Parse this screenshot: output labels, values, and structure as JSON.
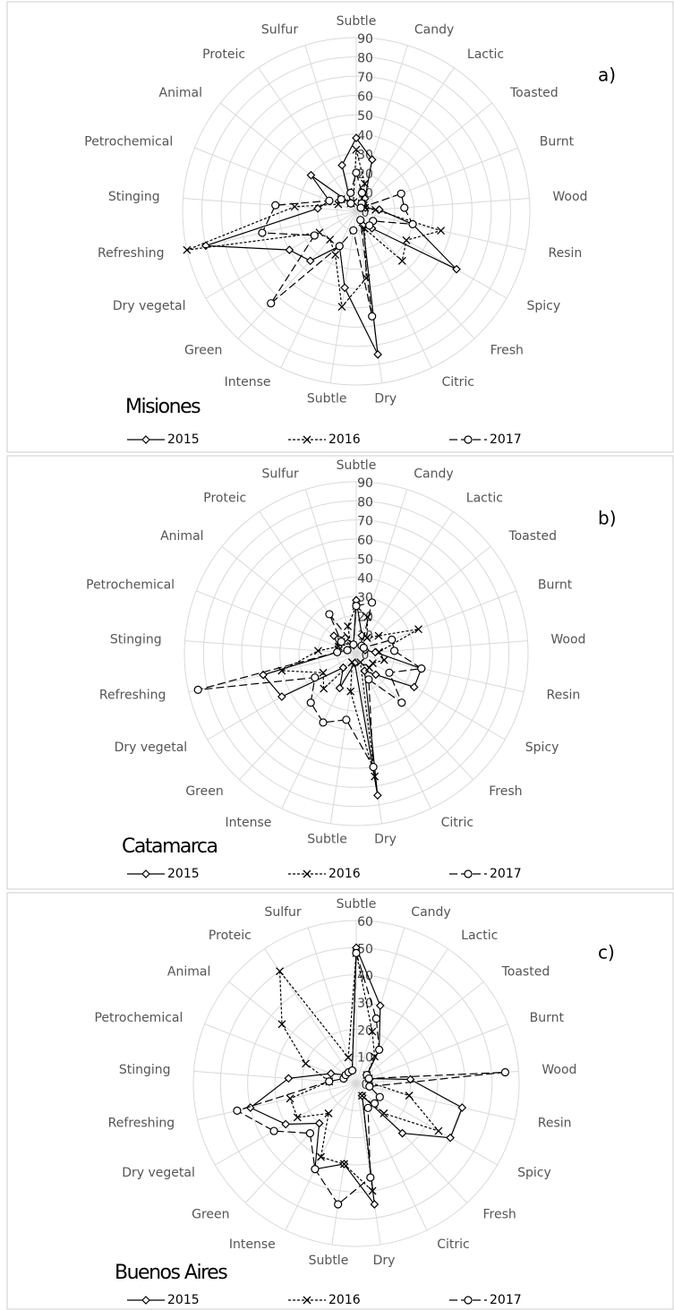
{
  "chart_data": [
    {
      "type": "radar",
      "title": "Misiones",
      "panel_label": "a)",
      "categories": [
        "Subtle",
        "Candy",
        "Lactic",
        "Toasted",
        "Burnt",
        "Wood",
        "Resin",
        "Spicy",
        "Fresh",
        "Citric",
        "Dry",
        "Subtle",
        "Intense",
        "Green",
        "Dry vegetal",
        "Refreshing",
        "Stinging",
        "Petrochemical",
        "Animal",
        "Proteic",
        "Sulfur"
      ],
      "ylim": [
        0,
        90
      ],
      "yticks": [
        0,
        10,
        20,
        30,
        40,
        50,
        60,
        70,
        80,
        90
      ],
      "grid": true,
      "series": [
        {
          "name": "2015",
          "color": "#000000",
          "marker": "diamond",
          "dash": "solid",
          "values": [
            38,
            28,
            8,
            5,
            5,
            12,
            30,
            60,
            12,
            8,
            75,
            40,
            20,
            35,
            40,
            80,
            20,
            15,
            30,
            5,
            25
          ]
        },
        {
          "name": "2016",
          "color": "#000000",
          "marker": "x",
          "dash": "short",
          "values": [
            32,
            15,
            5,
            5,
            5,
            10,
            45,
            30,
            35,
            10,
            35,
            50,
            25,
            20,
            22,
            90,
            32,
            10,
            10,
            5,
            5
          ]
        },
        {
          "name": "2017",
          "color": "#000000",
          "marker": "circle",
          "dash": "long",
          "values": [
            20,
            10,
            5,
            3,
            25,
            25,
            30,
            10,
            10,
            5,
            55,
            10,
            20,
            65,
            25,
            50,
            42,
            15,
            10,
            5,
            10
          ]
        }
      ]
    },
    {
      "type": "radar",
      "title": "Catamarca",
      "panel_label": "b)",
      "categories": [
        "Subtle",
        "Candy",
        "Lactic",
        "Toasted",
        "Burnt",
        "Wood",
        "Resin",
        "Spicy",
        "Fresh",
        "Citric",
        "Dry",
        "Subtle",
        "Intense",
        "Green",
        "Dry vegetal",
        "Refreshing",
        "Stinging",
        "Petrochemical",
        "Animal",
        "Proteic",
        "Sulfur"
      ],
      "ylim": [
        0,
        90
      ],
      "yticks": [
        0,
        10,
        20,
        30,
        40,
        50,
        60,
        70,
        80,
        90
      ],
      "grid": true,
      "series": [
        {
          "name": "2015",
          "color": "#000000",
          "marker": "diamond",
          "dash": "solid",
          "values": [
            28,
            10,
            5,
            5,
            5,
            10,
            35,
            35,
            15,
            10,
            75,
            5,
            20,
            10,
            45,
            50,
            10,
            10,
            15,
            10,
            5
          ]
        },
        {
          "name": "2016",
          "color": "#000000",
          "marker": "x",
          "dash": "short",
          "values": [
            25,
            20,
            10,
            15,
            35,
            12,
            15,
            10,
            10,
            5,
            65,
            20,
            5,
            25,
            20,
            40,
            20,
            10,
            10,
            5,
            15
          ]
        },
        {
          "name": "2017",
          "color": "#000000",
          "marker": "circle",
          "dash": "long",
          "values": [
            25,
            28,
            5,
            5,
            20,
            20,
            35,
            20,
            35,
            15,
            60,
            35,
            40,
            35,
            25,
            85,
            10,
            5,
            10,
            25,
            5
          ]
        }
      ]
    },
    {
      "type": "radar",
      "title": "Buenos Aires",
      "panel_label": "c)",
      "categories": [
        "Subtle",
        "Candy",
        "Lactic",
        "Toasted",
        "Burnt",
        "Wood",
        "Resin",
        "Spicy",
        "Fresh",
        "Citric",
        "Dry",
        "Subtle",
        "Intense",
        "Green",
        "Dry vegetal",
        "Refreshing",
        "Stinging",
        "Petrochemical",
        "Animal",
        "Proteic",
        "Sulfur"
      ],
      "ylim": [
        0,
        60
      ],
      "yticks": [
        0,
        10,
        20,
        30,
        40,
        50,
        60
      ],
      "grid": true,
      "series": [
        {
          "name": "2015",
          "color": "#000000",
          "marker": "diamond",
          "dash": "solid",
          "values": [
            50,
            30,
            15,
            5,
            5,
            20,
            40,
            40,
            25,
            5,
            45,
            30,
            35,
            20,
            30,
            40,
            25,
            10,
            5,
            5,
            5
          ]
        },
        {
          "name": "2016",
          "color": "#000000",
          "marker": "x",
          "dash": "short",
          "values": [
            48,
            20,
            12,
            5,
            5,
            5,
            20,
            35,
            15,
            5,
            40,
            30,
            30,
            15,
            25,
            25,
            10,
            20,
            35,
            50,
            10
          ]
        },
        {
          "name": "2017",
          "color": "#000000",
          "marker": "circle",
          "dash": "long",
          "values": [
            48,
            25,
            15,
            5,
            5,
            55,
            5,
            10,
            10,
            10,
            35,
            45,
            35,
            25,
            35,
            45,
            10,
            5,
            5,
            5,
            5
          ]
        }
      ]
    }
  ]
}
